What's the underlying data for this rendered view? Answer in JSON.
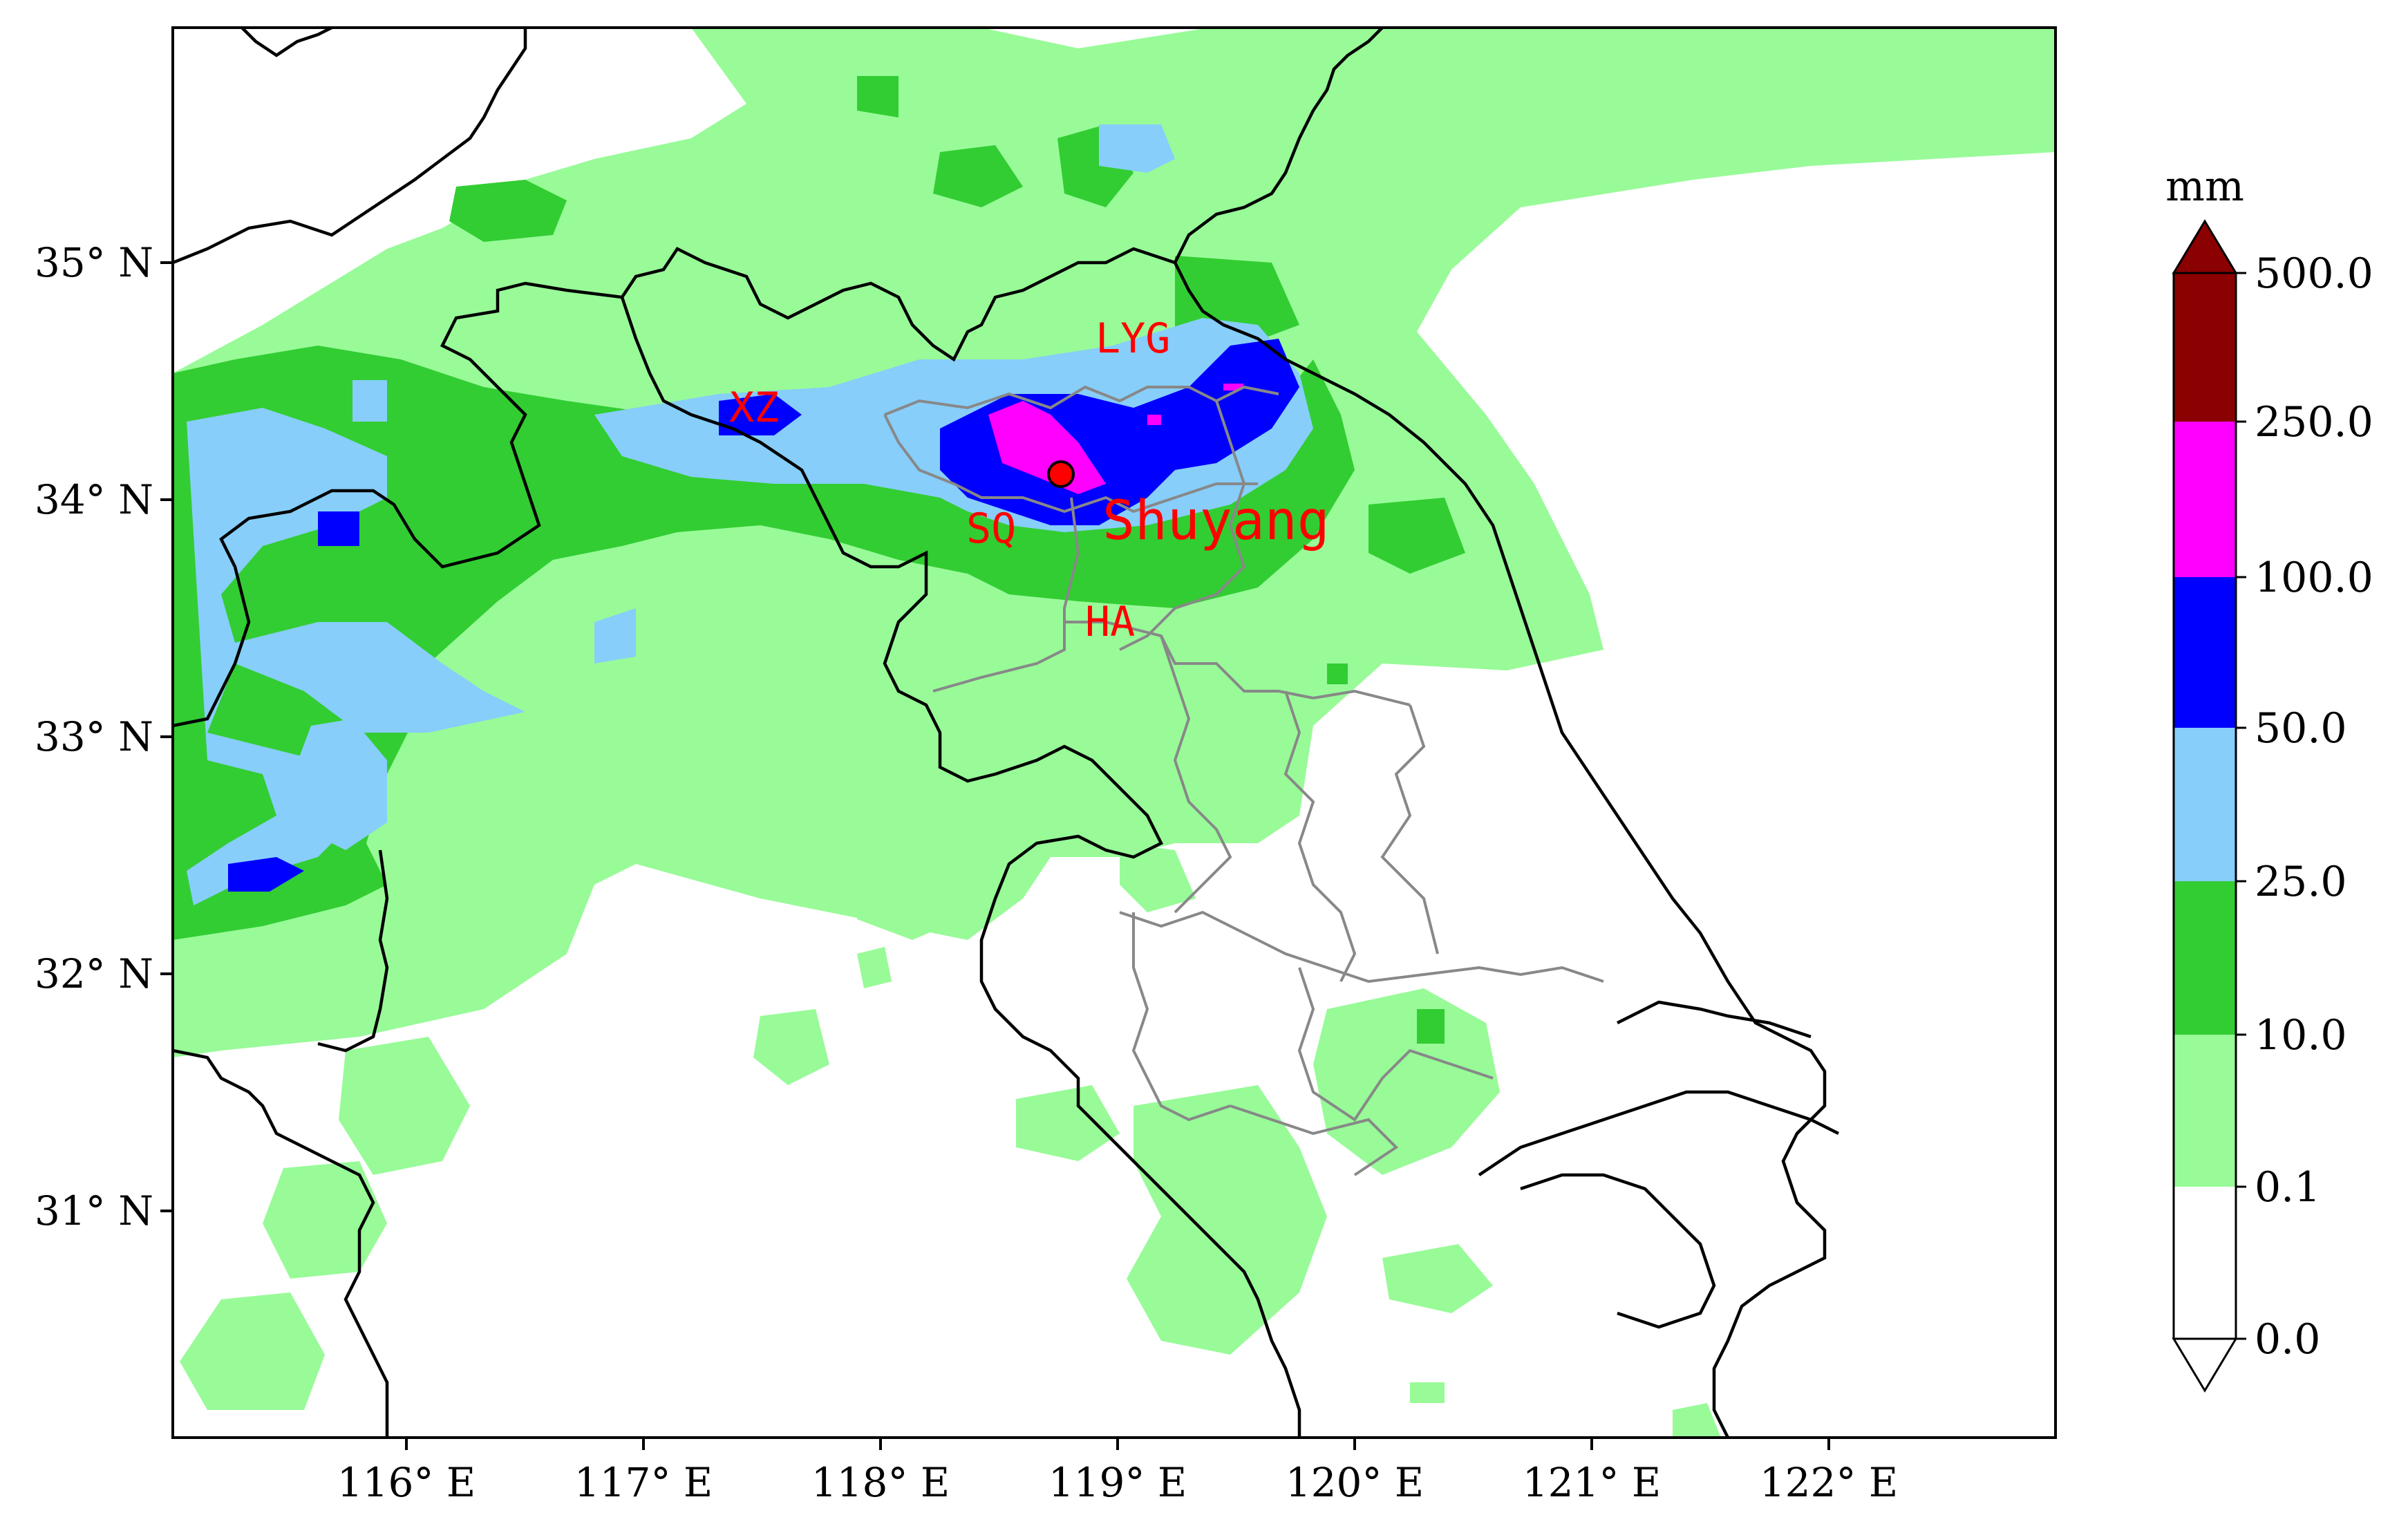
{
  "map": {
    "lon_ticks": [
      "116° E",
      "117° E",
      "118° E",
      "119° E",
      "120° E",
      "121° E",
      "122° E"
    ],
    "lat_ticks": [
      "35° N",
      "34° N",
      "33° N",
      "32° N",
      "31° N"
    ],
    "city_labels": {
      "xz": "XZ",
      "lyg": "LYG",
      "sq": "SQ",
      "ha": "HA",
      "shuyang": "Shuyang"
    },
    "station_marker_color": "#ff0000"
  },
  "colorbar": {
    "unit": "mm",
    "levels": [
      "0.0",
      "0.1",
      "10.0",
      "25.0",
      "50.0",
      "100.0",
      "250.0",
      "500.0"
    ],
    "colors": [
      "#ffffff",
      "#98fb98",
      "#32cd32",
      "#87cefa",
      "#0000ff",
      "#ff00ff",
      "#8b0000"
    ]
  }
}
